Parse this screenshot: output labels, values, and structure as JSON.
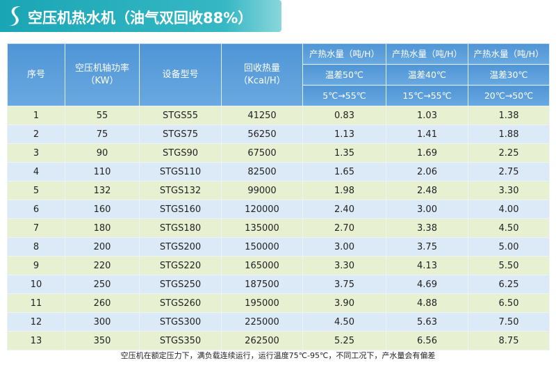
{
  "header": {
    "title": "空压机热水机（油气双回收88%）"
  },
  "table": {
    "columns": [
      {
        "lines": [
          "序号"
        ]
      },
      {
        "lines": [
          "空压机轴功率",
          "（KW）"
        ]
      },
      {
        "lines": [
          "设备型号"
        ]
      },
      {
        "lines": [
          "回收热量",
          "（Kcal/H）"
        ]
      },
      {
        "lines": [
          "产热水量（吨/H）",
          "温差50℃",
          "5℃→55℃"
        ]
      },
      {
        "lines": [
          "产热水量（吨/H）",
          "温差40℃",
          "15℃→55℃"
        ]
      },
      {
        "lines": [
          "产热水量（吨/H）",
          "温差30℃",
          "20℃→50℃"
        ]
      }
    ],
    "rows": [
      [
        "1",
        "55",
        "STGS55",
        "41250",
        "0.83",
        "1.03",
        "1.38"
      ],
      [
        "2",
        "75",
        "STGS75",
        "56250",
        "1.13",
        "1.41",
        "1.88"
      ],
      [
        "3",
        "90",
        "STGS90",
        "67500",
        "1.35",
        "1.69",
        "2.25"
      ],
      [
        "4",
        "110",
        "STGS110",
        "82500",
        "1.65",
        "2.06",
        "2.75"
      ],
      [
        "5",
        "132",
        "STGS132",
        "99000",
        "1.98",
        "2.48",
        "3.30"
      ],
      [
        "6",
        "160",
        "STGS160",
        "120000",
        "2.40",
        "3.00",
        "4.00"
      ],
      [
        "7",
        "180",
        "STGS180",
        "135000",
        "2.70",
        "3.38",
        "4.50"
      ],
      [
        "8",
        "200",
        "STGS200",
        "150000",
        "3.00",
        "3.75",
        "5.00"
      ],
      [
        "9",
        "220",
        "STGS220",
        "165000",
        "3.30",
        "4.13",
        "5.50"
      ],
      [
        "10",
        "250",
        "STGS250",
        "187500",
        "3.75",
        "4.69",
        "6.25"
      ],
      [
        "11",
        "260",
        "STGS260",
        "195000",
        "3.90",
        "4.88",
        "6.50"
      ],
      [
        "12",
        "300",
        "STGS300",
        "225000",
        "4.50",
        "5.63",
        "7.50"
      ],
      [
        "13",
        "350",
        "STGS350",
        "262500",
        "5.25",
        "6.56",
        "8.75"
      ]
    ]
  },
  "footnote": "空压机在额定压力下，满负载连续运行，运行温度75℃-95℃，不同工况下，产水量会有偏差"
}
